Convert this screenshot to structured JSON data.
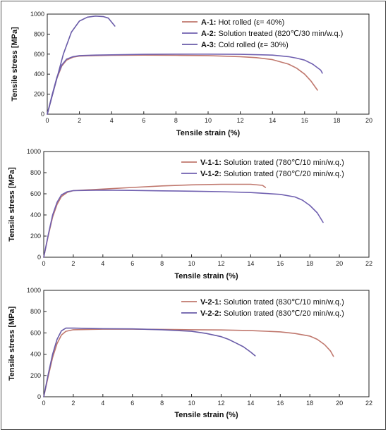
{
  "chart_data": [
    {
      "type": "line",
      "xlabel": "Tensile strain (%)",
      "ylabel": "Tensile stress [MPa]",
      "xlim": [
        0,
        20
      ],
      "ylim": [
        0,
        1000
      ],
      "xticks": [
        "0",
        "2",
        "4",
        "6",
        "8",
        "10",
        "12",
        "14",
        "16",
        "18",
        "20"
      ],
      "yticks": [
        "0",
        "200",
        "400",
        "600",
        "800",
        "1000"
      ],
      "legend_position": "top-right",
      "series": [
        {
          "id": "A-1",
          "name": "Hot rolled (ε= 40%)",
          "color": "#c0786e",
          "x": [
            0,
            0.3,
            0.6,
            0.9,
            1.2,
            1.6,
            2,
            3,
            4,
            6,
            8,
            10,
            12,
            13,
            14,
            15,
            15.5,
            16,
            16.4,
            16.8
          ],
          "y": [
            0,
            180,
            360,
            480,
            540,
            570,
            580,
            585,
            588,
            590,
            588,
            585,
            575,
            565,
            545,
            500,
            460,
            400,
            330,
            240
          ]
        },
        {
          "id": "A-2",
          "name": "Solution treated (820℃/30 min/w.q.)",
          "color": "#7060b0",
          "x": [
            0,
            0.3,
            0.6,
            0.9,
            1.2,
            1.6,
            2,
            3,
            4,
            6,
            8,
            10,
            12,
            14,
            15,
            15.5,
            16,
            16.5,
            17,
            17.1
          ],
          "y": [
            0,
            190,
            370,
            490,
            550,
            575,
            585,
            590,
            593,
            598,
            600,
            600,
            598,
            590,
            575,
            560,
            540,
            500,
            440,
            410
          ]
        },
        {
          "id": "A-3",
          "name": "Cold rolled (ε= 30%)",
          "color": "#6a5ca8",
          "x": [
            0,
            0.5,
            1,
            1.5,
            2,
            2.5,
            3,
            3.5,
            3.8,
            4,
            4.2
          ],
          "y": [
            0,
            300,
            600,
            820,
            930,
            970,
            980,
            975,
            960,
            920,
            880
          ]
        }
      ]
    },
    {
      "type": "line",
      "xlabel": "Tensile strain (%)",
      "ylabel": "Tensile stress [MPa]",
      "xlim": [
        0,
        22
      ],
      "ylim": [
        0,
        1000
      ],
      "xticks": [
        "0",
        "2",
        "4",
        "6",
        "8",
        "10",
        "12",
        "14",
        "16",
        "18",
        "20",
        "22"
      ],
      "yticks": [
        "0",
        "200",
        "400",
        "600",
        "800",
        "1000"
      ],
      "legend_position": "top-right",
      "series": [
        {
          "id": "V-1-1",
          "name": "Solution trated (780℃/10 min/w.q.)",
          "color": "#c0786e",
          "x": [
            0,
            0.3,
            0.6,
            0.9,
            1.2,
            1.6,
            2,
            4,
            6,
            8,
            10,
            12,
            14,
            14.8,
            15
          ],
          "y": [
            0,
            200,
            380,
            500,
            575,
            615,
            630,
            645,
            660,
            675,
            685,
            690,
            690,
            680,
            660
          ]
        },
        {
          "id": "V-1-2",
          "name": "Solution trated (780℃/20 min/w.q.)",
          "color": "#7060b0",
          "x": [
            0,
            0.3,
            0.6,
            0.9,
            1.2,
            1.6,
            2,
            4,
            6,
            8,
            10,
            12,
            14,
            16,
            17,
            17.5,
            18,
            18.5,
            18.9
          ],
          "y": [
            0,
            210,
            400,
            520,
            590,
            620,
            630,
            635,
            632,
            628,
            625,
            620,
            612,
            595,
            570,
            540,
            490,
            420,
            330
          ]
        }
      ]
    },
    {
      "type": "line",
      "xlabel": "Tensile strain (%)",
      "ylabel": "Tensile stress [MPa]",
      "xlim": [
        0,
        22
      ],
      "ylim": [
        0,
        1000
      ],
      "xticks": [
        "0",
        "2",
        "4",
        "6",
        "8",
        "10",
        "12",
        "14",
        "16",
        "18",
        "20",
        "22"
      ],
      "yticks": [
        "0",
        "200",
        "400",
        "600",
        "800",
        "1000"
      ],
      "legend_position": "top-right",
      "series": [
        {
          "id": "V-2-1",
          "name": "Solution trated (830℃/10 min/w.q.)",
          "color": "#c0786e",
          "x": [
            0,
            0.3,
            0.6,
            0.9,
            1.2,
            1.5,
            2,
            4,
            6,
            8,
            10,
            12,
            14,
            16,
            17,
            18,
            18.5,
            19,
            19.4,
            19.6
          ],
          "y": [
            0,
            190,
            370,
            500,
            580,
            615,
            630,
            635,
            635,
            633,
            630,
            628,
            622,
            610,
            595,
            570,
            540,
            490,
            430,
            380
          ]
        },
        {
          "id": "V-2-2",
          "name": "Solution trated (830℃/20 min/w.q.)",
          "color": "#6a5ca8",
          "x": [
            0,
            0.3,
            0.6,
            0.9,
            1.2,
            1.5,
            2,
            4,
            6,
            8,
            10,
            11,
            12,
            12.5,
            13,
            13.5,
            14,
            14.3
          ],
          "y": [
            0,
            210,
            400,
            540,
            620,
            645,
            645,
            640,
            638,
            630,
            615,
            595,
            565,
            540,
            505,
            470,
            420,
            385
          ]
        }
      ]
    }
  ]
}
